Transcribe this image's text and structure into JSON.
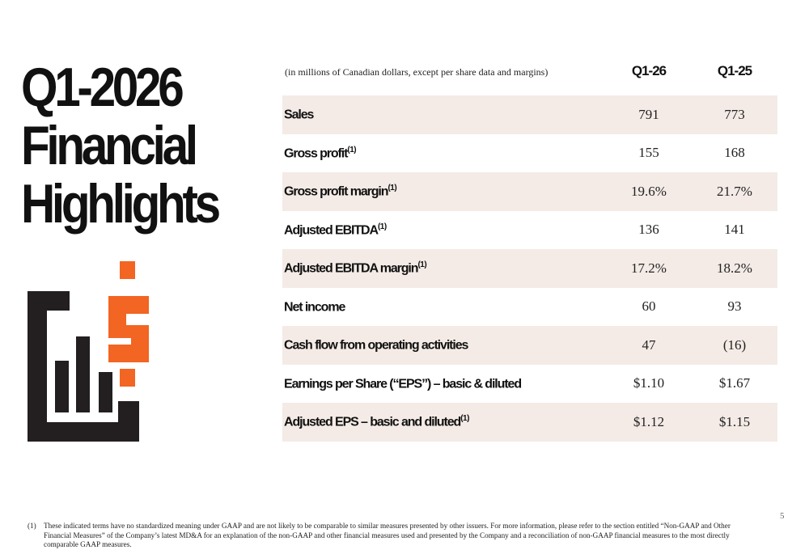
{
  "title": {
    "line1": "Q1-2026",
    "line2": "Financial",
    "line3": "Highlights"
  },
  "colors": {
    "accent": "#f26522",
    "dark": "#231f20",
    "row_shade": "#f4ebe6"
  },
  "logo": {
    "icon": "bar-chart-dollar-icon"
  },
  "table": {
    "note": "(in millions of Canadian dollars, except per share data and margins)",
    "col1": "Q1-26",
    "col2": "Q1-25",
    "rows": [
      {
        "label": "Sales",
        "sup": "",
        "v1": "791",
        "v2": "773"
      },
      {
        "label": "Gross profit",
        "sup": "(1)",
        "v1": "155",
        "v2": "168"
      },
      {
        "label": "Gross profit margin",
        "sup": "(1)",
        "v1": "19.6%",
        "v2": "21.7%"
      },
      {
        "label": "Adjusted EBITDA",
        "sup": "(1)",
        "v1": "136",
        "v2": "141"
      },
      {
        "label": "Adjusted EBITDA margin",
        "sup": "(1)",
        "v1": "17.2%",
        "v2": "18.2%"
      },
      {
        "label": "Net income",
        "sup": "",
        "v1": "60",
        "v2": "93"
      },
      {
        "label": "Cash flow from operating activities",
        "sup": "",
        "v1": "47",
        "v2": "(16)"
      },
      {
        "label": "Earnings per Share (“EPS”) – basic & diluted",
        "sup": "",
        "v1": "$1.10",
        "v2": "$1.67"
      },
      {
        "label": "Adjusted EPS – basic and diluted",
        "sup": "(1)",
        "v1": "$1.12",
        "v2": "$1.15"
      }
    ]
  },
  "page_number": "5",
  "footnote": {
    "mark": "(1)",
    "text": "These indicated terms have no standardized meaning under GAAP and are not likely to be comparable to similar measures presented by other issuers. For more information, please refer to the section entitled “Non-GAAP and Other Financial Measures” of the Company’s latest MD&A for an explanation of the non-GAAP and other financial measures used and presented by the Company and a reconciliation of non-GAAP financial measures to the most directly comparable GAAP measures."
  }
}
